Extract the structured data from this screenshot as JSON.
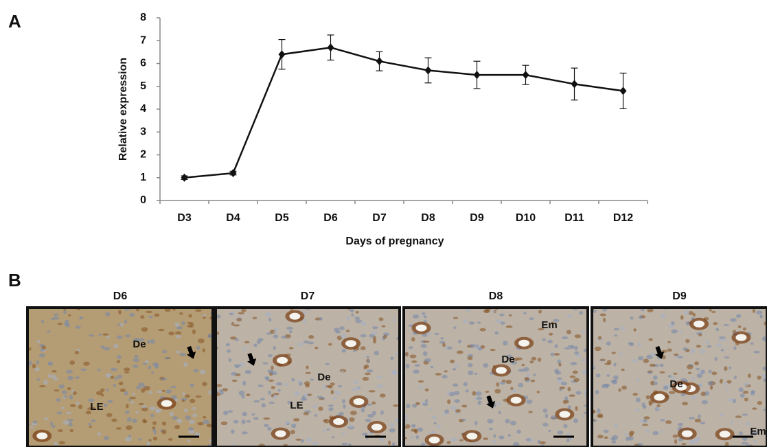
{
  "chart_data": {
    "type": "line",
    "xlabel": "Days of pregnancy",
    "ylabel": "Relative expression",
    "categories": [
      "D3",
      "D4",
      "D5",
      "D6",
      "D7",
      "D8",
      "D9",
      "D10",
      "D11",
      "D12"
    ],
    "series": [
      {
        "color": "#111111",
        "values": [
          1.0,
          1.2,
          6.4,
          6.7,
          6.1,
          5.7,
          5.5,
          5.5,
          5.1,
          4.8
        ],
        "errors": [
          0.08,
          0.08,
          0.65,
          0.55,
          0.42,
          0.55,
          0.6,
          0.42,
          0.7,
          0.78
        ]
      }
    ],
    "ylim": [
      0,
      8
    ],
    "yticks": [
      0,
      1,
      2,
      3,
      4,
      5,
      6,
      7,
      8
    ],
    "grid": false
  },
  "figure": {
    "panel_a_label": "A",
    "panel_b_label": "B",
    "micrographs": [
      {
        "title": "D6",
        "labels": [
          "De",
          "LE"
        ]
      },
      {
        "title": "D7",
        "labels": [
          "De",
          "LE"
        ]
      },
      {
        "title": "D8",
        "labels": [
          "Em",
          "De"
        ]
      },
      {
        "title": "D9",
        "labels": [
          "De",
          "Em"
        ]
      }
    ]
  }
}
